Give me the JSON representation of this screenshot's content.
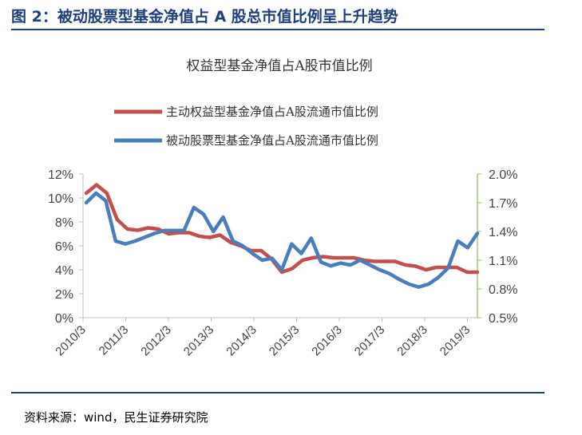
{
  "figure_title": "图 2：被动股票型基金净值占 A 股总市值比例呈上升趋势",
  "source": "资料来源：wind，民生证券研究院",
  "chart_data": {
    "type": "line",
    "title": "权益型基金净值占A股市值比例",
    "x_labels": [
      "2010/3",
      "2011/3",
      "2012/3",
      "2013/3",
      "2014/3",
      "2015/3",
      "2016/3",
      "2017/3",
      "2018/3",
      "2019/3"
    ],
    "y_left": {
      "ticks": [
        "0%",
        "2%",
        "4%",
        "6%",
        "8%",
        "10%",
        "12%"
      ],
      "lim": [
        0,
        12
      ]
    },
    "y_right": {
      "ticks": [
        "0.5%",
        "0.8%",
        "1.1%",
        "1.4%",
        "1.7%",
        "2.0%"
      ],
      "lim": [
        0.5,
        2.0
      ]
    },
    "grid": false,
    "legend_position": "top",
    "series": [
      {
        "name": "主动权益型基金净值占A股流通市值比例",
        "color": "#c0504d",
        "axis": "left",
        "values": [
          10.4,
          11.1,
          10.4,
          8.2,
          7.4,
          7.3,
          7.5,
          7.4,
          7.0,
          7.1,
          7.1,
          6.8,
          6.7,
          6.9,
          6.3,
          6.0,
          5.6,
          5.6,
          4.9,
          3.8,
          4.1,
          4.8,
          5.0,
          5.1,
          5.0,
          5.0,
          5.0,
          4.8,
          4.7,
          4.7,
          4.7,
          4.4,
          4.3,
          4.0,
          4.2,
          4.2,
          4.2,
          3.8,
          3.8
        ]
      },
      {
        "name": "被动股票型基金净值占A股流通市值比例",
        "color": "#4a7ebb",
        "axis": "right",
        "values": [
          1.7,
          1.8,
          1.72,
          1.3,
          1.27,
          1.3,
          1.34,
          1.38,
          1.41,
          1.41,
          1.41,
          1.65,
          1.58,
          1.4,
          1.55,
          1.3,
          1.25,
          1.17,
          1.1,
          1.12,
          1.0,
          1.27,
          1.17,
          1.33,
          1.08,
          1.04,
          1.07,
          1.05,
          1.1,
          1.05,
          1.0,
          0.96,
          0.9,
          0.85,
          0.82,
          0.85,
          0.92,
          1.02,
          1.3,
          1.23,
          1.38
        ]
      }
    ]
  }
}
